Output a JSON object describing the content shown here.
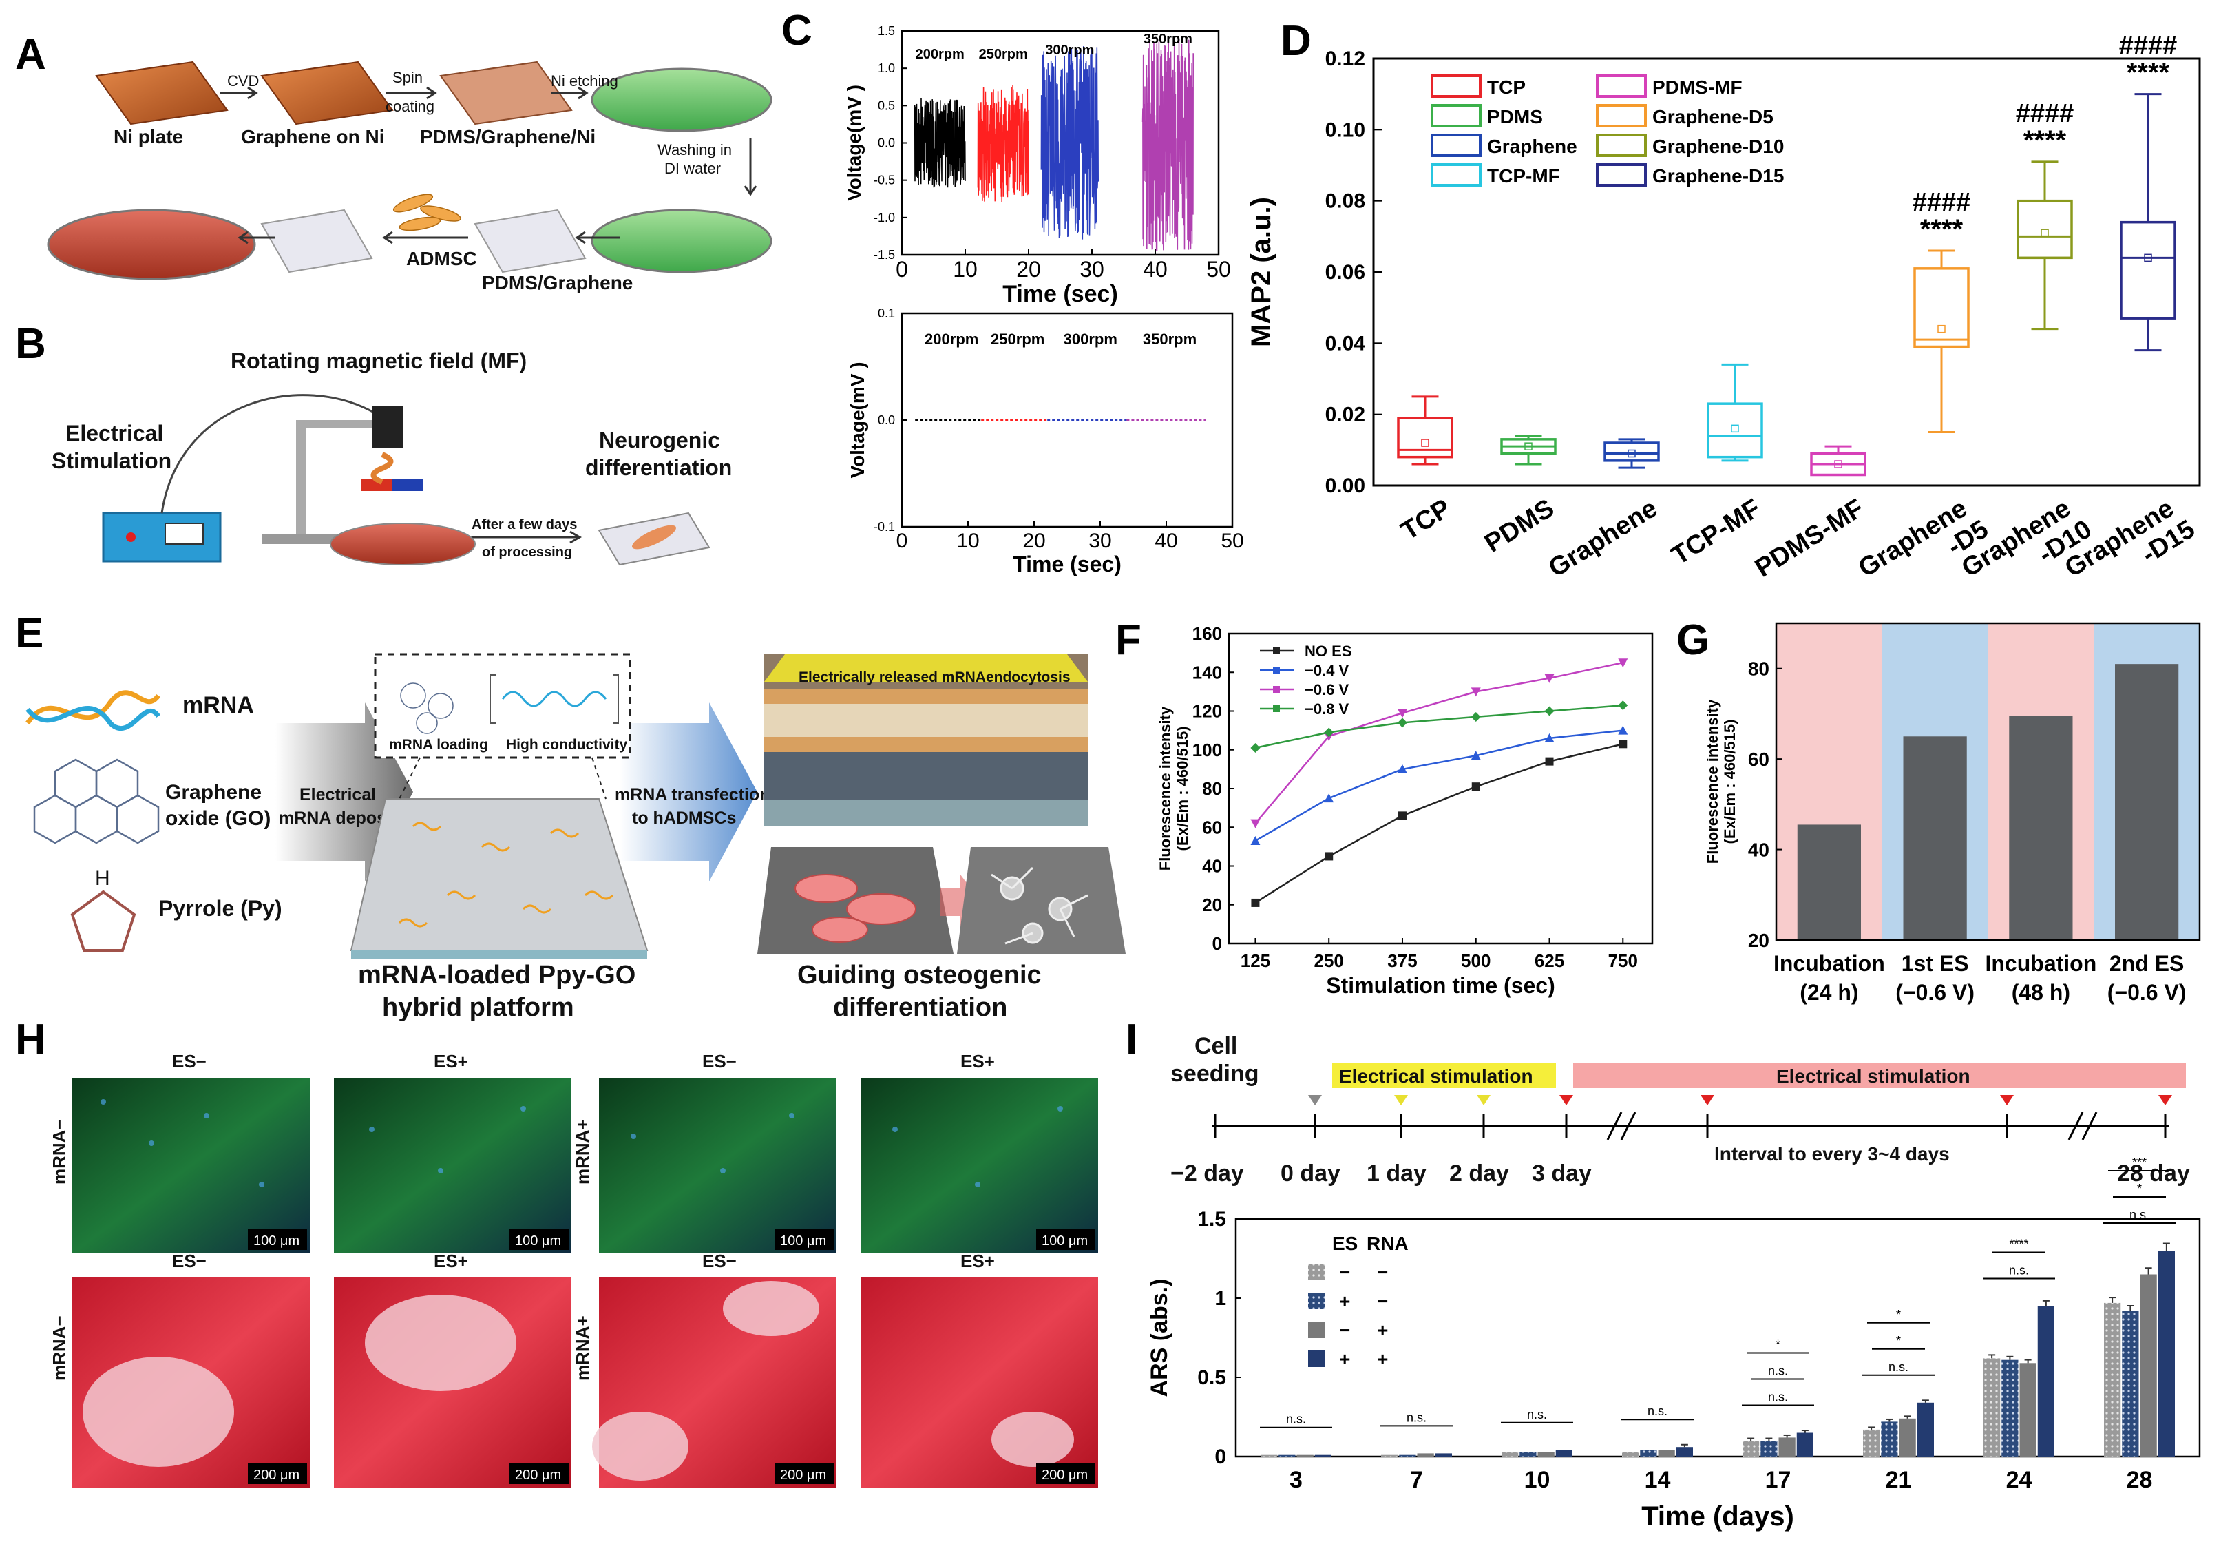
{
  "panels": {
    "A": {
      "letter": "A",
      "steps": [
        "Ni plate",
        "Graphene on Ni",
        "PDMS/Graphene/Ni",
        "PDMS/Graphene",
        "ADMSC"
      ],
      "arrows": [
        "CVD",
        "Spin",
        "coating",
        "Ni etching",
        "Washing in",
        "DI water"
      ]
    },
    "B": {
      "letter": "B",
      "texts": [
        "Rotating magnetic field (MF)",
        "Electrical",
        "Stimulation",
        "Neurogenic",
        "differentiation",
        "After a few days",
        "of processing"
      ]
    },
    "C": {
      "letter": "C"
    },
    "D": {
      "letter": "D"
    },
    "E": {
      "letter": "E",
      "items": [
        "mRNA",
        "Graphene",
        "oxide (GO)",
        "Pyrrole (Py)",
        "H"
      ],
      "arrows": [
        "Electrical",
        "mRNA deposition",
        "mRNA transfection",
        "to hADMSCs"
      ],
      "inset": [
        "mRNA loading",
        "High conductivity"
      ],
      "top_banner": "Electrically released mRNAendocytosis",
      "captions": [
        "mRNA-loaded Ppy-GO",
        "hybrid platform",
        "Guiding osteogenic",
        "differentiation"
      ]
    },
    "F": {
      "letter": "F"
    },
    "G": {
      "letter": "G"
    },
    "H": {
      "letter": "H",
      "col_labels": [
        "ES−",
        "ES+",
        "ES−",
        "ES+"
      ],
      "row_labels": [
        "mRNA−",
        "mRNA+"
      ],
      "scale_top": "100 μm",
      "scale_bottom": "200 μm"
    },
    "I": {
      "letter": "I",
      "timeline": {
        "cell_seeding": [
          "Cell",
          "seeding"
        ],
        "bars": [
          "Electrical stimulation",
          "Electrical stimulation"
        ],
        "days": [
          "−2 day",
          "0 day",
          "1 day",
          "2 day",
          "3 day",
          "28 day"
        ],
        "interval": "Interval to every 3~4 days"
      }
    }
  },
  "chart_data": [
    {
      "id": "C-top",
      "type": "line",
      "title": "",
      "xlabel": "Time (sec)",
      "ylabel": "Voltage(mV )",
      "xlim": [
        0,
        50
      ],
      "ylim": [
        -1.5,
        1.5
      ],
      "xticks": [
        "0",
        "10",
        "20",
        "30",
        "40",
        "50"
      ],
      "yticks": [
        "-1.5",
        "-1.0",
        "-0.5",
        "0.0",
        "0.5",
        "1.0",
        "1.5"
      ],
      "series": [
        {
          "name": "200rpm",
          "x_range": [
            2,
            10
          ],
          "amplitude": 0.6,
          "color": "#000000"
        },
        {
          "name": "250rpm",
          "x_range": [
            12,
            20
          ],
          "amplitude": 0.8,
          "color": "#ff2020"
        },
        {
          "name": "300rpm",
          "x_range": [
            22,
            31
          ],
          "amplitude": 1.3,
          "color": "#2b3fbf"
        },
        {
          "name": "350rpm",
          "x_range": [
            38,
            46
          ],
          "amplitude": 1.45,
          "color": "#b040b0"
        }
      ]
    },
    {
      "id": "C-bottom",
      "type": "line",
      "xlabel": "Time (sec)",
      "ylabel": "Voltage(mV )",
      "xlim": [
        0,
        50
      ],
      "ylim": [
        -0.1,
        0.1
      ],
      "xticks": [
        "0",
        "10",
        "20",
        "30",
        "40",
        "50"
      ],
      "yticks": [
        "-0.1",
        "0.0",
        "0.1"
      ],
      "series": [
        {
          "name": "200rpm",
          "x_range": [
            2,
            12
          ],
          "value": 0.0,
          "color": "#000000"
        },
        {
          "name": "250rpm",
          "x_range": [
            12,
            22
          ],
          "value": 0.0,
          "color": "#ff2020"
        },
        {
          "name": "300rpm",
          "x_range": [
            22,
            34
          ],
          "value": 0.0,
          "color": "#2b3fbf"
        },
        {
          "name": "350rpm",
          "x_range": [
            34,
            46
          ],
          "value": 0.0,
          "color": "#b040b0"
        }
      ]
    },
    {
      "id": "D",
      "type": "box",
      "ylabel": "MAP2 (a.u.)",
      "ylim": [
        0,
        0.12
      ],
      "yticks": [
        "0.00",
        "0.02",
        "0.04",
        "0.06",
        "0.08",
        "0.10",
        "0.12"
      ],
      "categories": [
        "TCP",
        "PDMS",
        "Graphene",
        "TCP-MF",
        "PDMS-MF",
        "Graphene-D5",
        "Graphene-D10",
        "Graphene-D15"
      ],
      "xtick_labels": [
        "TCP",
        "PDMS",
        "Graphene",
        "TCP-MF",
        "PDMS-MF",
        "Graphene\n-D5",
        "Graphene\n-D10",
        "Graphene\n-D15"
      ],
      "legend": [
        "TCP",
        "PDMS",
        "Graphene",
        "TCP-MF",
        "PDMS-MF",
        "Graphene-D5",
        "Graphene-D10",
        "Graphene-D15"
      ],
      "colors": [
        "#e8252a",
        "#3bb04a",
        "#2046b0",
        "#27c6e0",
        "#d640b8",
        "#f59a2c",
        "#8a9a1c",
        "#2a2d8a"
      ],
      "boxes": [
        {
          "min": 0.006,
          "q1": 0.008,
          "median": 0.01,
          "q3": 0.019,
          "max": 0.025,
          "mean": 0.012
        },
        {
          "min": 0.006,
          "q1": 0.009,
          "median": 0.011,
          "q3": 0.013,
          "max": 0.014,
          "mean": 0.011
        },
        {
          "min": 0.005,
          "q1": 0.007,
          "median": 0.009,
          "q3": 0.012,
          "max": 0.013,
          "mean": 0.009
        },
        {
          "min": 0.007,
          "q1": 0.008,
          "median": 0.014,
          "q3": 0.023,
          "max": 0.034,
          "mean": 0.016
        },
        {
          "min": 0.003,
          "q1": 0.003,
          "median": 0.006,
          "q3": 0.009,
          "max": 0.011,
          "mean": 0.006
        },
        {
          "min": 0.015,
          "q1": 0.039,
          "median": 0.041,
          "q3": 0.061,
          "max": 0.066,
          "mean": 0.044
        },
        {
          "min": 0.044,
          "q1": 0.064,
          "median": 0.07,
          "q3": 0.08,
          "max": 0.091,
          "mean": 0.071
        },
        {
          "min": 0.038,
          "q1": 0.047,
          "median": 0.064,
          "q3": 0.074,
          "max": 0.11,
          "mean": 0.064
        }
      ],
      "annotations": [
        {
          "category": "Graphene-D5",
          "text": [
            "####",
            "****"
          ]
        },
        {
          "category": "Graphene-D10",
          "text": [
            "####",
            "****"
          ]
        },
        {
          "category": "Graphene-D15",
          "text": [
            "####",
            "****"
          ]
        }
      ]
    },
    {
      "id": "F",
      "type": "line",
      "xlabel": "Stimulation time (sec)",
      "ylabel": "Fluorescence intensity",
      "ylabel2": "(Ex/Em : 460/515)",
      "x": [
        125,
        250,
        375,
        500,
        625,
        750
      ],
      "ylim": [
        0,
        160
      ],
      "yticks": [
        "0",
        "20",
        "40",
        "60",
        "80",
        "100",
        "120",
        "140",
        "160"
      ],
      "series": [
        {
          "name": "NO ES",
          "values": [
            21,
            45,
            66,
            81,
            94,
            103
          ],
          "color": "#222222",
          "marker": "square"
        },
        {
          "name": "−0.4 V",
          "values": [
            53,
            75,
            90,
            97,
            106,
            110
          ],
          "color": "#2a5bd7",
          "marker": "triangle-up"
        },
        {
          "name": "−0.6 V",
          "values": [
            62,
            107,
            119,
            130,
            137,
            145
          ],
          "color": "#c040c0",
          "marker": "triangle-down"
        },
        {
          "name": "−0.8 V",
          "values": [
            101,
            109,
            114,
            117,
            120,
            123
          ],
          "color": "#2e9a3e",
          "marker": "diamond"
        }
      ]
    },
    {
      "id": "G",
      "type": "bar",
      "ylabel": "Fluorescence intensity",
      "ylabel2": "(Ex/Em : 460/515)",
      "categories": [
        "Incubation (24 h)",
        "1st ES (−0.6 V)",
        "Incubation (48 h)",
        "2nd ES (−0.6 V)"
      ],
      "tick_lines": [
        [
          "Incubation",
          "(24 h)"
        ],
        [
          "1st ES",
          "(−0.6 V)"
        ],
        [
          "Incubation",
          "(48 h)"
        ],
        [
          "2nd ES",
          "(−0.6 V)"
        ]
      ],
      "values": [
        45.5,
        65,
        69.5,
        81
      ],
      "ylim": [
        20,
        90
      ],
      "yticks": [
        "20",
        "40",
        "60",
        "80"
      ],
      "band_colors": [
        "#f8cccc",
        "#b8d4ec",
        "#f8cccc",
        "#b8d4ec"
      ],
      "bar_color": "#5b5e61"
    },
    {
      "id": "I",
      "type": "bar",
      "xlabel": "Time (days)",
      "ylabel": "ARS (abs.)",
      "categories": [
        "3",
        "7",
        "10",
        "14",
        "17",
        "21",
        "24",
        "28"
      ],
      "ylim": [
        0,
        1.5
      ],
      "yticks": [
        "0",
        "0.5",
        "1",
        "1.5"
      ],
      "legend_header": [
        "ES",
        "RNA"
      ],
      "series": [
        {
          "name": "ES− RNA−",
          "es": "−",
          "rna": "−",
          "values": [
            0.01,
            0.01,
            0.03,
            0.03,
            0.1,
            0.17,
            0.62,
            0.97
          ],
          "color": "#8c8c8c",
          "pattern": "dots"
        },
        {
          "name": "ES+ RNA−",
          "es": "+",
          "rna": "−",
          "values": [
            0.01,
            0.01,
            0.03,
            0.04,
            0.1,
            0.22,
            0.61,
            0.92
          ],
          "color": "#2c4a7c",
          "pattern": "dots"
        },
        {
          "name": "ES− RNA+",
          "es": "−",
          "rna": "+",
          "values": [
            0.01,
            0.02,
            0.03,
            0.04,
            0.12,
            0.24,
            0.59,
            1.15
          ],
          "color": "#7a7a7a",
          "pattern": "solid"
        },
        {
          "name": "ES+ RNA+",
          "es": "+",
          "rna": "+",
          "values": [
            0.01,
            0.02,
            0.04,
            0.06,
            0.15,
            0.34,
            0.95,
            1.3
          ],
          "color": "#233b70",
          "pattern": "solid"
        }
      ],
      "significance": [
        {
          "category": "3",
          "text": "n.s."
        },
        {
          "category": "7",
          "text": "n.s."
        },
        {
          "category": "10",
          "text": "n.s."
        },
        {
          "category": "14",
          "text": "n.s."
        },
        {
          "category": "17",
          "text": [
            "n.s.",
            "n.s.",
            "*"
          ]
        },
        {
          "category": "21",
          "text": [
            "n.s.",
            "*",
            "*"
          ]
        },
        {
          "category": "24",
          "text": [
            "n.s.",
            "****"
          ]
        },
        {
          "category": "28",
          "text": [
            "n.s.",
            "*",
            "***"
          ]
        }
      ]
    }
  ]
}
